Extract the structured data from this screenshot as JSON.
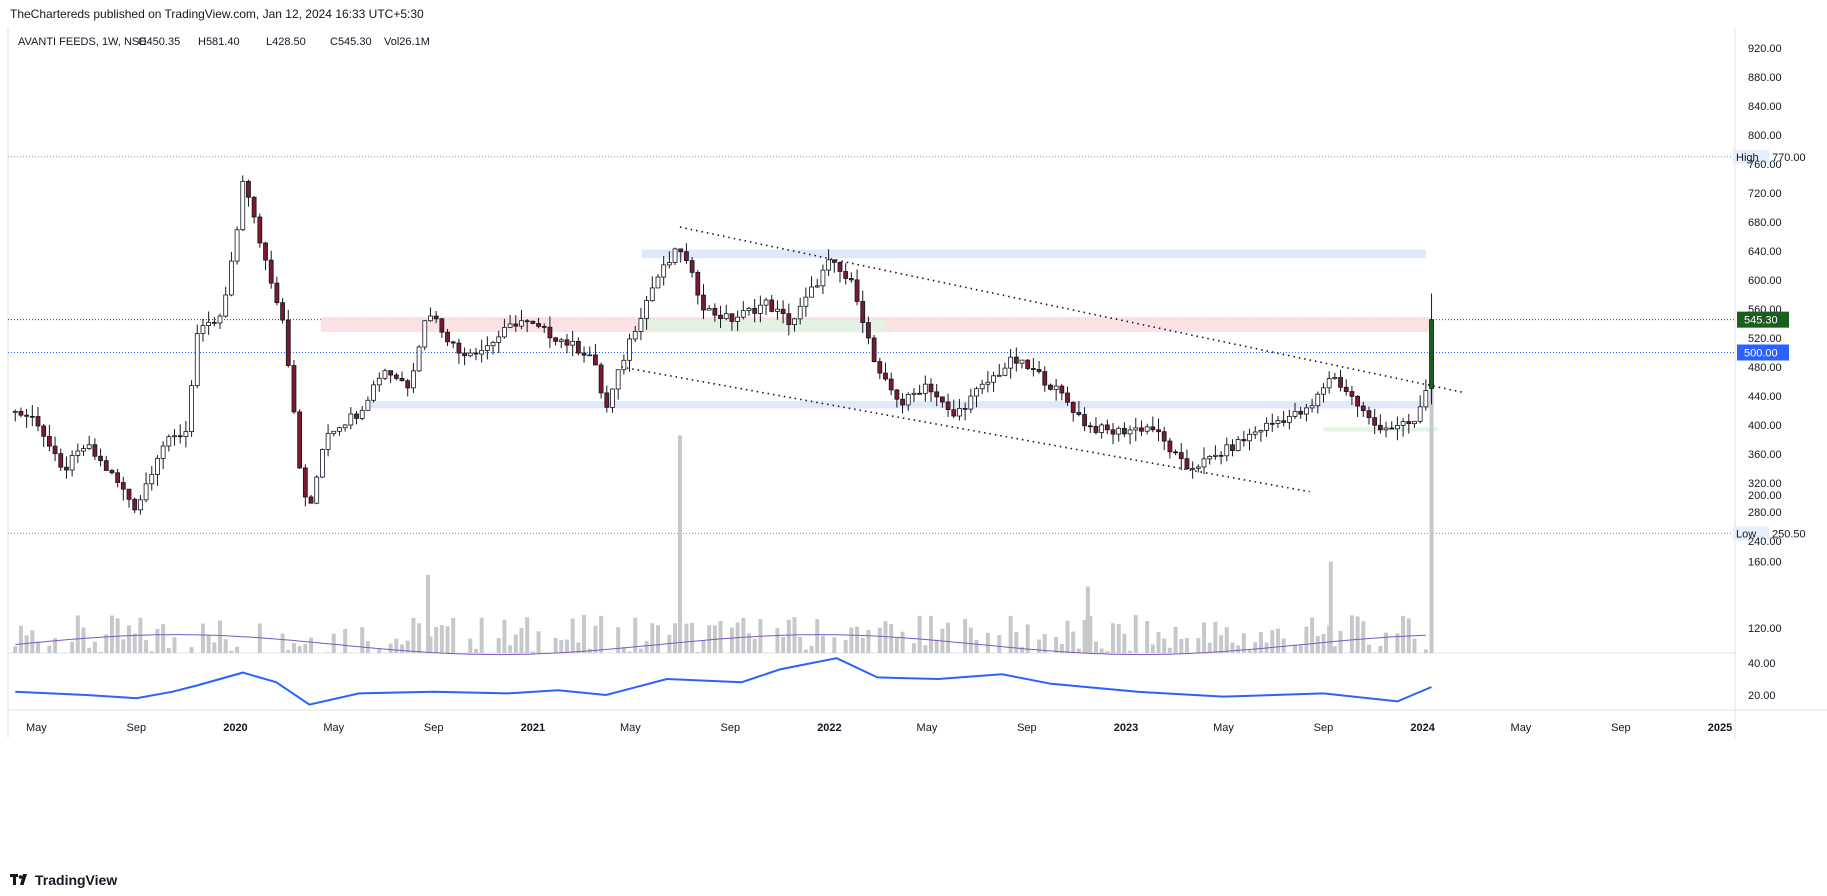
{
  "header": {
    "publish_line": "TheChartereds published on TradingView.com, Jan 12, 2024 16:33 UTC+5:30"
  },
  "legend": {
    "symbol": "AVANTI FEEDS, 1W, NSE",
    "open": "O450.35",
    "high": "H581.40",
    "low": "L428.50",
    "close": "C545.30",
    "volume": "Vol26.1M"
  },
  "footer": {
    "brand": "TradingView",
    "logo_icon": "tradingview-logo-icon"
  },
  "colors": {
    "up": "#089981",
    "down": "#f23645",
    "candle_body_up": "#ffffff",
    "candle_body_down": "#7b1a2a",
    "candle_outline": "#131722",
    "volume_bar": "#c7c8cc",
    "volume_ma": "#7e57c2",
    "indicator_line": "#2962ff",
    "last_price_bg": "#1b5e20",
    "level_500_bg": "#2962ff",
    "grid_dotted": "#5b6f8c",
    "zone_blue": "#dbe7fb",
    "zone_red": "#fbe0e0",
    "zone_green": "#e2f3e2"
  },
  "chart_data": {
    "type": "candlestick",
    "interval": "1W",
    "price_axis": {
      "ticks": [
        920,
        880,
        840,
        800,
        760,
        720,
        680,
        640,
        600,
        560,
        520,
        480,
        440,
        400,
        360,
        320,
        280,
        240
      ],
      "ylim": [
        232,
        945
      ]
    },
    "volume_axis": {
      "ticks": [
        200,
        160,
        120
      ],
      "labels": [
        "200.00",
        "160.00",
        "120.00"
      ]
    },
    "indicator_axis": {
      "ticks": [
        40,
        20
      ],
      "labels": [
        "40.00",
        "20.00"
      ]
    },
    "time_axis": {
      "ticks": [
        {
          "label": "May",
          "date": "2019-05"
        },
        {
          "label": "Sep",
          "date": "2019-09"
        },
        {
          "label": "2020",
          "date": "2020-01",
          "bold": true
        },
        {
          "label": "May",
          "date": "2020-05"
        },
        {
          "label": "Sep",
          "date": "2020-09"
        },
        {
          "label": "2021",
          "date": "2021-01",
          "bold": true
        },
        {
          "label": "May",
          "date": "2021-05"
        },
        {
          "label": "Sep",
          "date": "2021-09"
        },
        {
          "label": "2022",
          "date": "2022-01",
          "bold": true
        },
        {
          "label": "May",
          "date": "2022-05"
        },
        {
          "label": "Sep",
          "date": "2022-09"
        },
        {
          "label": "2023",
          "date": "2023-01",
          "bold": true
        },
        {
          "label": "May",
          "date": "2023-05"
        },
        {
          "label": "Sep",
          "date": "2023-09"
        },
        {
          "label": "2024",
          "date": "2024-01",
          "bold": true
        },
        {
          "label": "May",
          "date": "2024-05"
        },
        {
          "label": "Sep",
          "date": "2024-09"
        },
        {
          "label": "2025",
          "date": "2025-01",
          "bold": true
        }
      ]
    },
    "markers": [
      {
        "label": "High",
        "value": "770.00",
        "price": 770
      },
      {
        "label": "Low",
        "value": "250.50",
        "price": 250.5
      }
    ],
    "price_labels": [
      {
        "value": "545.30",
        "price": 545.3,
        "kind": "last"
      },
      {
        "value": "500.00",
        "price": 500,
        "kind": "level"
      }
    ],
    "zones": [
      {
        "color": "blue",
        "from": "2021-05-15",
        "to": "2024-01-05",
        "low": 630,
        "high": 642
      },
      {
        "color": "red",
        "from": "2020-04-15",
        "to": "2024-01-12",
        "low": 528,
        "high": 549
      },
      {
        "color": "green",
        "from": "2021-05-15",
        "to": "2022-03-10",
        "low": 528,
        "high": 545
      },
      {
        "color": "blue",
        "from": "2020-06-15",
        "to": "2024-01-12",
        "low": 423,
        "high": 433
      },
      {
        "color": "green",
        "from": "2023-09-01",
        "to": "2024-01-20",
        "low": 391,
        "high": 397
      }
    ],
    "trendlines": [
      {
        "from": {
          "date": "2021-07-01",
          "price": 673
        },
        "to": {
          "date": "2024-02-20",
          "price": 445
        }
      },
      {
        "from": {
          "date": "2021-04-20",
          "price": 480
        },
        "to": {
          "date": "2023-08-15",
          "price": 308
        }
      }
    ],
    "close_series": [
      {
        "date": "2019-04-05",
        "close": 418
      },
      {
        "date": "2019-05-01",
        "close": 408
      },
      {
        "date": "2019-06-01",
        "close": 335
      },
      {
        "date": "2019-07-01",
        "close": 372
      },
      {
        "date": "2019-08-01",
        "close": 332
      },
      {
        "date": "2019-09-01",
        "close": 285
      },
      {
        "date": "2019-10-01",
        "close": 370
      },
      {
        "date": "2019-11-01",
        "close": 392
      },
      {
        "date": "2019-11-15",
        "close": 525
      },
      {
        "date": "2019-12-15",
        "close": 548
      },
      {
        "date": "2020-01-01",
        "close": 650
      },
      {
        "date": "2020-01-10",
        "close": 740
      },
      {
        "date": "2020-02-01",
        "close": 650
      },
      {
        "date": "2020-03-01",
        "close": 540
      },
      {
        "date": "2020-03-20",
        "close": 340
      },
      {
        "date": "2020-04-01",
        "close": 275
      },
      {
        "date": "2020-04-20",
        "close": 388
      },
      {
        "date": "2020-06-01",
        "close": 418
      },
      {
        "date": "2020-07-01",
        "close": 478
      },
      {
        "date": "2020-08-01",
        "close": 455
      },
      {
        "date": "2020-08-25",
        "close": 560
      },
      {
        "date": "2020-10-01",
        "close": 500
      },
      {
        "date": "2020-11-01",
        "close": 505
      },
      {
        "date": "2020-12-15",
        "close": 545
      },
      {
        "date": "2021-02-01",
        "close": 520
      },
      {
        "date": "2021-03-15",
        "close": 495
      },
      {
        "date": "2021-04-01",
        "close": 420
      },
      {
        "date": "2021-05-01",
        "close": 520
      },
      {
        "date": "2021-06-01",
        "close": 600
      },
      {
        "date": "2021-07-01",
        "close": 645
      },
      {
        "date": "2021-08-01",
        "close": 560
      },
      {
        "date": "2021-09-01",
        "close": 545
      },
      {
        "date": "2021-10-15",
        "close": 568
      },
      {
        "date": "2021-11-15",
        "close": 540
      },
      {
        "date": "2022-01-01",
        "close": 625
      },
      {
        "date": "2022-02-01",
        "close": 590
      },
      {
        "date": "2022-03-01",
        "close": 470
      },
      {
        "date": "2022-04-01",
        "close": 430
      },
      {
        "date": "2022-05-01",
        "close": 458
      },
      {
        "date": "2022-06-01",
        "close": 410
      },
      {
        "date": "2022-07-01",
        "close": 445
      },
      {
        "date": "2022-08-15",
        "close": 490
      },
      {
        "date": "2022-09-15",
        "close": 470
      },
      {
        "date": "2022-10-15",
        "close": 440
      },
      {
        "date": "2022-11-15",
        "close": 398
      },
      {
        "date": "2022-12-15",
        "close": 390
      },
      {
        "date": "2023-02-01",
        "close": 398
      },
      {
        "date": "2023-03-15",
        "close": 340
      },
      {
        "date": "2023-04-10",
        "close": 350
      },
      {
        "date": "2023-05-15",
        "close": 372
      },
      {
        "date": "2023-06-15",
        "close": 395
      },
      {
        "date": "2023-07-15",
        "close": 410
      },
      {
        "date": "2023-08-15",
        "close": 420
      },
      {
        "date": "2023-09-10",
        "close": 470
      },
      {
        "date": "2023-10-01",
        "close": 445
      },
      {
        "date": "2023-11-01",
        "close": 400
      },
      {
        "date": "2023-12-01",
        "close": 396
      },
      {
        "date": "2023-12-25",
        "close": 405
      },
      {
        "date": "2024-01-05",
        "close": 450
      },
      {
        "date": "2024-01-12",
        "close": 545.3
      }
    ],
    "latest_candle": {
      "date": "2024-01-12",
      "open": 450.35,
      "high": 581.4,
      "low": 428.5,
      "close": 545.3
    },
    "volume_highlights": [
      {
        "date": "2021-07-01",
        "volume": 236
      },
      {
        "date": "2024-01-12",
        "volume": 298
      },
      {
        "date": "2020-08-25",
        "volume": 152
      },
      {
        "date": "2022-11-15",
        "volume": 145
      },
      {
        "date": "2023-09-10",
        "volume": 160
      }
    ],
    "volume_ma_level": 110,
    "indicator_series": [
      {
        "date": "2019-04-05",
        "value": 22
      },
      {
        "date": "2019-07-01",
        "value": 20
      },
      {
        "date": "2019-09-01",
        "value": 18
      },
      {
        "date": "2019-10-15",
        "value": 22
      },
      {
        "date": "2019-11-15",
        "value": 26
      },
      {
        "date": "2020-01-10",
        "value": 34
      },
      {
        "date": "2020-02-20",
        "value": 28
      },
      {
        "date": "2020-04-01",
        "value": 14
      },
      {
        "date": "2020-06-01",
        "value": 21
      },
      {
        "date": "2020-09-01",
        "value": 22
      },
      {
        "date": "2020-12-01",
        "value": 21
      },
      {
        "date": "2021-02-01",
        "value": 23
      },
      {
        "date": "2021-04-01",
        "value": 20
      },
      {
        "date": "2021-06-15",
        "value": 30
      },
      {
        "date": "2021-09-15",
        "value": 28
      },
      {
        "date": "2021-11-01",
        "value": 36
      },
      {
        "date": "2022-01-10",
        "value": 43
      },
      {
        "date": "2022-03-01",
        "value": 31
      },
      {
        "date": "2022-05-15",
        "value": 30
      },
      {
        "date": "2022-08-01",
        "value": 33
      },
      {
        "date": "2022-10-01",
        "value": 27
      },
      {
        "date": "2023-01-15",
        "value": 22
      },
      {
        "date": "2023-05-01",
        "value": 19
      },
      {
        "date": "2023-09-01",
        "value": 21
      },
      {
        "date": "2023-12-01",
        "value": 16
      },
      {
        "date": "2024-01-12",
        "value": 25
      }
    ]
  }
}
